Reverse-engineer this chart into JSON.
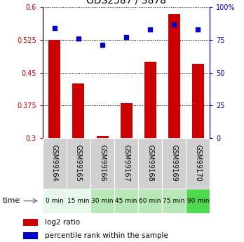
{
  "title": "GDS2587 / 3878",
  "samples": [
    "GSM99164",
    "GSM99165",
    "GSM99166",
    "GSM99167",
    "GSM99168",
    "GSM99169",
    "GSM99170"
  ],
  "time_labels": [
    "0 min",
    "15 min",
    "30 min",
    "45 min",
    "60 min",
    "75 min",
    "90 min"
  ],
  "time_colors": [
    "#e8f8e8",
    "#e8f8e8",
    "#b8e8b8",
    "#b8e8b8",
    "#b8e8b8",
    "#b8e8b8",
    "#50d850"
  ],
  "log2_ratio": [
    0.525,
    0.425,
    0.305,
    0.38,
    0.475,
    0.585,
    0.47
  ],
  "percentile_rank": [
    84,
    76,
    71,
    77,
    83,
    87,
    83
  ],
  "ylim_left": [
    0.3,
    0.6
  ],
  "ylim_right": [
    0,
    100
  ],
  "yticks_left": [
    0.3,
    0.375,
    0.45,
    0.525,
    0.6
  ],
  "ytick_labels_left": [
    "0.3",
    "0.375",
    "0.45",
    "0.525",
    "0.6"
  ],
  "yticks_right": [
    0,
    25,
    50,
    75,
    100
  ],
  "ytick_labels_right": [
    "0",
    "25",
    "50",
    "75",
    "100%"
  ],
  "bar_color": "#cc0000",
  "dot_color": "#0000cc",
  "bar_bottom": 0.3,
  "legend_labels": [
    "log2 ratio",
    "percentile rank within the sample"
  ],
  "sample_bg_color": "#d0d0d0",
  "bar_width": 0.5
}
